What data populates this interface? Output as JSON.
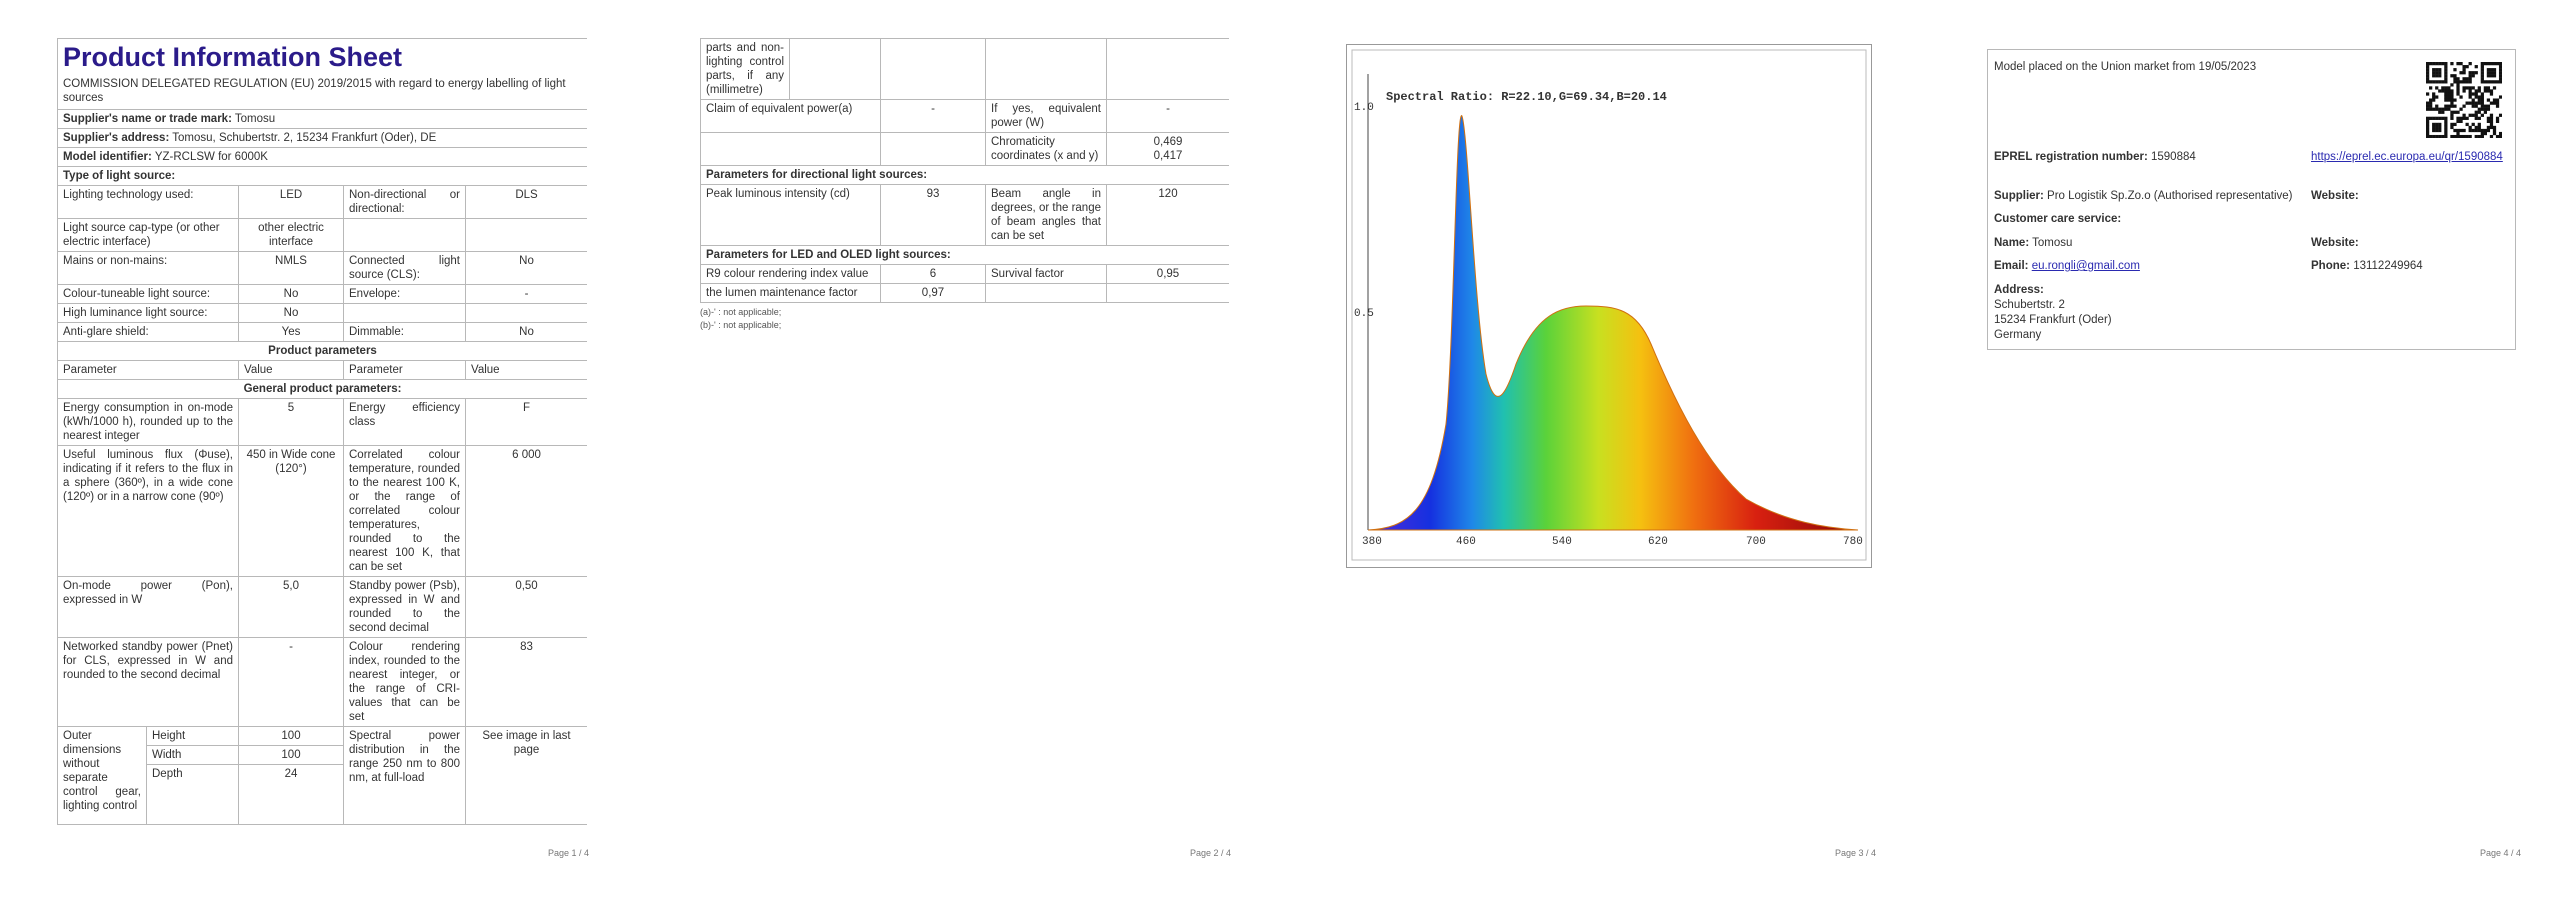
{
  "page1": {
    "title": "Product Information Sheet",
    "regulation": "COMMISSION DELEGATED REGULATION (EU) 2019/2015 with regard to energy labelling of light sources",
    "supplier": {
      "label": "Supplier's name or trade mark:",
      "value": "Tomosu"
    },
    "address": {
      "label": "Supplier's address:",
      "value": "Tomosu, Schubertstr. 2, 15234 Frankfurt (Oder), DE"
    },
    "model": {
      "label": "Model identifier:",
      "value": "YZ-RCLSW for 6000K"
    },
    "type_heading": "Type of light source:",
    "source_rows": [
      [
        "Lighting technology used:",
        "LED",
        "Non-directional or directional:",
        "DLS"
      ],
      [
        "Light source cap-type (or other electric interface)",
        "other electric interface"
      ],
      [
        "Mains or non-mains:",
        "NMLS",
        "Connected light source (CLS):",
        "No"
      ],
      [
        "Colour-tuneable light source:",
        "No",
        "Envelope:",
        "-"
      ],
      [
        "High luminance light source:",
        "No"
      ],
      [
        "Anti-glare shield:",
        "Yes",
        "Dimmable:",
        "No"
      ]
    ],
    "product_heading": "Product parameters",
    "col_headers": [
      "Parameter",
      "Value",
      "Parameter",
      "Value"
    ],
    "general_heading": "General product parameters:",
    "param_rows": [
      [
        "Energy consumption in on-mode (kWh/1000 h), rounded up to the nearest integer",
        "5",
        "Energy efficiency class",
        "F"
      ],
      [
        "Useful luminous flux (Φuse), indicating if it refers to the flux in a sphere (360º), in a wide cone (120º) or in a narrow cone (90º)",
        "450 in Wide cone (120°)",
        "Correlated colour temperature, rounded to the nearest 100 K, or the range of correlated colour temperatures, rounded to the nearest 100 K, that can be set",
        "6 000"
      ],
      [
        "On-mode power (Pon), expressed in W",
        "5,0",
        "Standby power (Psb), expressed in W and rounded to the second decimal",
        "0,50"
      ],
      [
        "Networked standby power (Pnet) for CLS, expressed in W and rounded to the second decimal",
        "-",
        "Colour rendering index, rounded to the nearest integer, or the range of CRI-values that can be set",
        "83"
      ]
    ],
    "outer": {
      "label": "Outer dimensions without separate control gear, lighting control",
      "dims": [
        [
          "Height",
          "100"
        ],
        [
          "Width",
          "100"
        ],
        [
          "Depth",
          "24"
        ]
      ],
      "param": "Spectral power distribution in the range 250 nm to 800 nm, at full-load",
      "value": "See image in last page"
    },
    "footer": "Page 1 / 4"
  },
  "page2": {
    "continuation": "parts and non-lighting control parts, if any (millimetre)",
    "equivalent": [
      "Claim of equivalent power(a)",
      "-",
      "If yes, equivalent power (W)",
      "-"
    ],
    "chroma": {
      "label": "Chromaticity coordinates (x and y)",
      "x": "0,469",
      "y": "0,417"
    },
    "directional_heading": "Parameters for directional light sources:",
    "directional": [
      "Peak luminous intensity (cd)",
      "93",
      "Beam angle in degrees, or the range of beam angles that can be set",
      "120"
    ],
    "led_heading": "Parameters for LED and OLED light sources:",
    "led_rows": [
      [
        "R9 colour rendering index value",
        "6",
        "Survival factor",
        "0,95"
      ],
      [
        "the lumen maintenance factor",
        "0,97"
      ]
    ],
    "notes": [
      "(a)-' : not applicable;",
      "(b)-' : not applicable;"
    ],
    "footer": "Page 2 / 4"
  },
  "page3": {
    "chart_title": "Spectral Ratio: R=22.10,G=69.34,B=20.14",
    "y_labels": [
      "1.0",
      "0.5"
    ],
    "x_labels": [
      "380",
      "460",
      "540",
      "620",
      "700",
      "780"
    ],
    "footer": "Page 3 / 4"
  },
  "page4": {
    "placed": "Model placed on the Union market from 19/05/2023",
    "eprel": {
      "label": "EPREL registration number:",
      "value": "1590884"
    },
    "link": "https://eprel.ec.europa.eu/qr/1590884",
    "supplier": {
      "label": "Supplier:",
      "value": "Pro Logistik Sp.Zo.o (Authorised representative)"
    },
    "website_label": "Website:",
    "customer": "Customer care service:",
    "name": {
      "label": "Name:",
      "value": "Tomosu"
    },
    "website_label_2": "Website:",
    "email": {
      "label": "Email:",
      "value": "eu.rongli@gmail.com"
    },
    "phone": {
      "label": "Phone:",
      "value": "13112249964"
    },
    "address": {
      "label": "Address:",
      "lines": [
        "Schubertstr. 2",
        "15234 Frankfurt (Oder)",
        "Germany"
      ]
    },
    "footer": "Page 4 / 4"
  }
}
